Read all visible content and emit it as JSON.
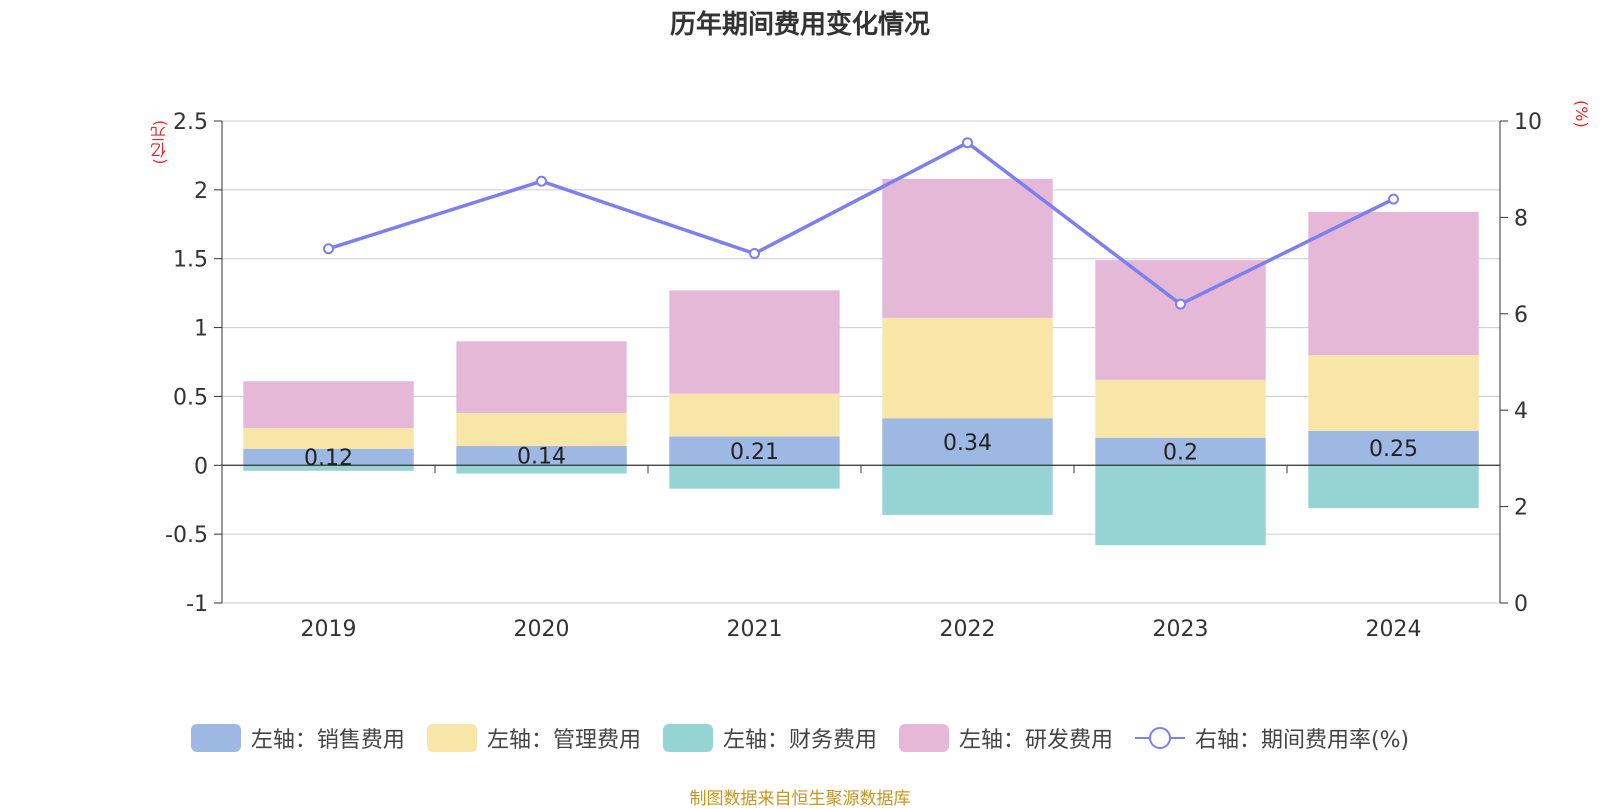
{
  "chart_data": {
    "type": "bar",
    "title": "历年期间费用变化情况",
    "left_unit": "(亿元)",
    "right_unit": "(%)",
    "categories": [
      "2019",
      "2020",
      "2021",
      "2022",
      "2023",
      "2024"
    ],
    "ylim_left": [
      -1,
      2.5
    ],
    "yticks_left": [
      "2.5",
      "2",
      "1.5",
      "1",
      "0.5",
      "0",
      "-0.5",
      "-1"
    ],
    "ylim_right": [
      0,
      10
    ],
    "yticks_right": [
      "10",
      "8",
      "6",
      "4",
      "2",
      "0"
    ],
    "grid": true,
    "legend_position": "bottom",
    "series": [
      {
        "name": "左轴：销售费用",
        "kind": "bar",
        "color": "#9db8e2",
        "values": [
          0.12,
          0.14,
          0.21,
          0.34,
          0.2,
          0.25
        ],
        "labels": [
          "0.12",
          "0.14",
          "0.21",
          "0.34",
          "0.2",
          "0.25"
        ]
      },
      {
        "name": "左轴：管理费用",
        "kind": "bar",
        "color": "#f8e6a8",
        "values": [
          0.15,
          0.24,
          0.31,
          0.73,
          0.42,
          0.55
        ]
      },
      {
        "name": "左轴：财务费用",
        "kind": "bar",
        "color": "#96d4d4",
        "values": [
          -0.04,
          -0.06,
          -0.17,
          -0.36,
          -0.58,
          -0.31
        ]
      },
      {
        "name": "左轴：研发费用",
        "kind": "bar",
        "color": "#e6b8d8",
        "values": [
          0.34,
          0.52,
          0.75,
          1.01,
          0.87,
          1.04
        ]
      },
      {
        "name": "右轴：期间费用率(%)",
        "kind": "line",
        "axis": "right",
        "color": "#7b7ff0",
        "values": [
          7.35,
          8.75,
          7.25,
          9.55,
          6.2,
          8.38
        ]
      }
    ]
  },
  "source_note": "制图数据来自恒生聚源数据库"
}
